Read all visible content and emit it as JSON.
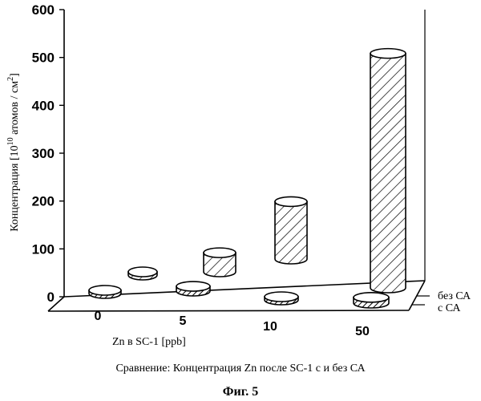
{
  "chart_data": {
    "type": "bar",
    "subtype": "3d-cylinder",
    "title": "",
    "ylabel_main": "Концентрация [10",
    "ylabel_exp": "10",
    "ylabel_mid": " атомов / см",
    "ylabel_sup": "2",
    "ylabel_end": "]",
    "xlabel": "Zn в SC-1 [ppb]",
    "categories": [
      "0",
      "5",
      "10",
      "50"
    ],
    "yticks": [
      "0",
      "100",
      "200",
      "300",
      "400",
      "500",
      "600"
    ],
    "ylim": [
      0,
      600
    ],
    "series": [
      {
        "name": "без СА",
        "values": [
          3,
          40,
          120,
          490
        ],
        "style": "hatch-light",
        "row": "back"
      },
      {
        "name": "с СА",
        "values": [
          2,
          10,
          0,
          12
        ],
        "style": "hatch-dark",
        "row": "front"
      }
    ],
    "grid": false,
    "legend_placement": "right-depth-axis"
  },
  "caption": "Сравнение: Концентрация Zn после SC-1 с и без СА",
  "figure_label": "Фиг. 5"
}
